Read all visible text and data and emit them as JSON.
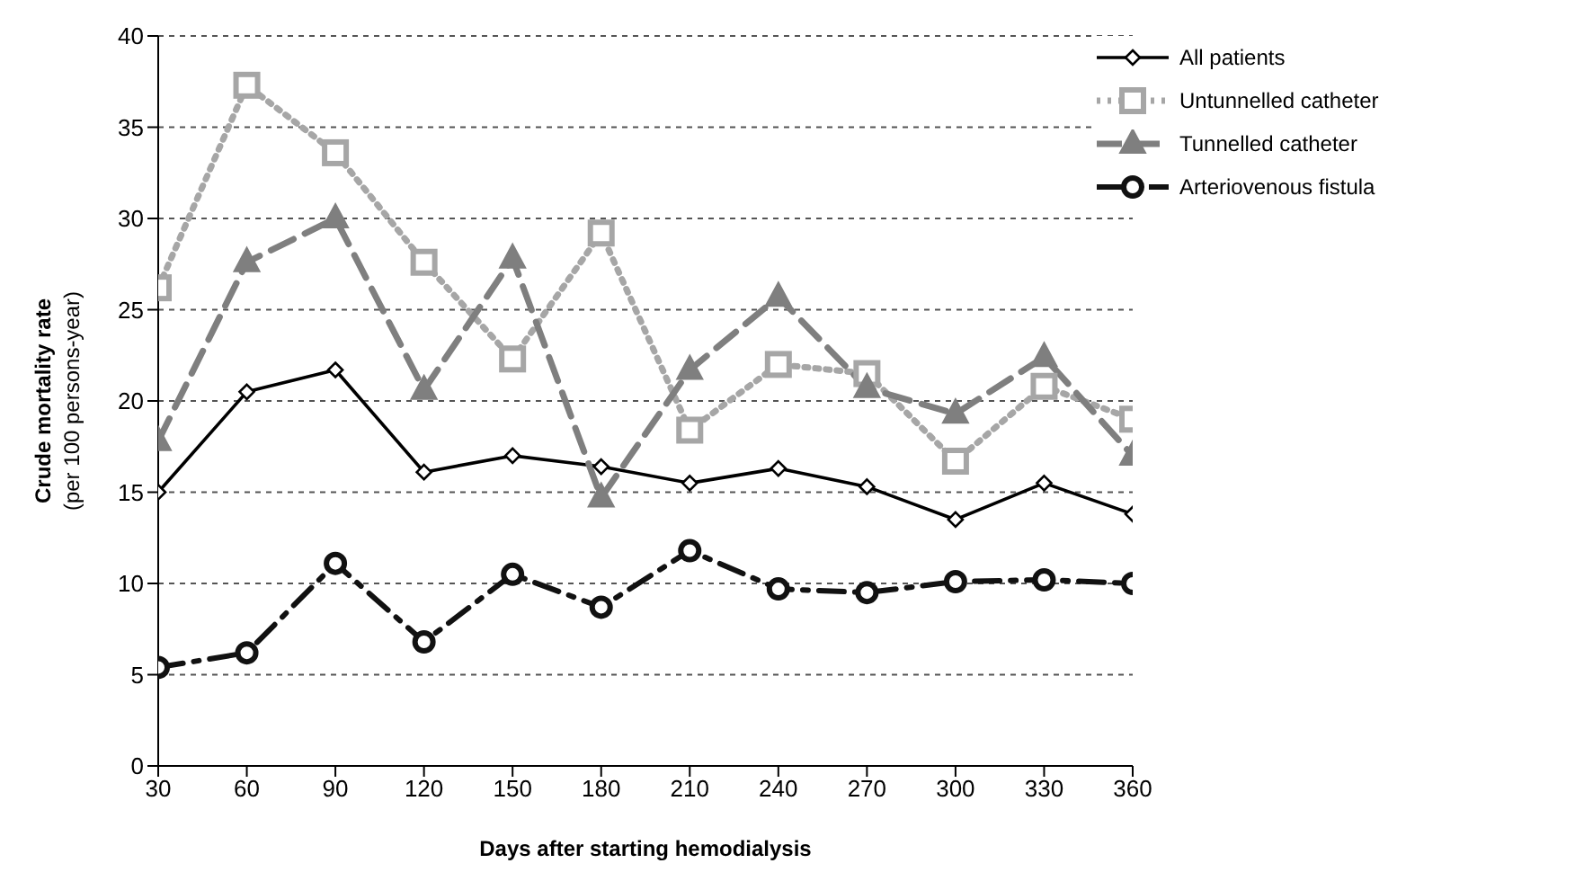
{
  "chart_data": {
    "type": "line",
    "xlabel": "Days after starting hemodialysis",
    "ylabel": "Crude mortality rate\n(per 100 persons-year)",
    "x": [
      30,
      60,
      90,
      120,
      150,
      180,
      210,
      240,
      270,
      300,
      330,
      360
    ],
    "xlim": [
      30,
      360
    ],
    "xticks": [
      30,
      60,
      90,
      120,
      150,
      180,
      210,
      240,
      270,
      300,
      330,
      360
    ],
    "ylim": [
      0,
      40
    ],
    "yticks": [
      0,
      5,
      10,
      15,
      20,
      25,
      30,
      35,
      40
    ],
    "grid": "y",
    "legend": "top right",
    "series": [
      {
        "name": "All patients",
        "color": "#000000",
        "marker": "diamond",
        "line_style": "solid",
        "values": [
          15,
          20.5,
          21.7,
          16.1,
          17,
          16.4,
          15.5,
          16.3,
          15.3,
          13.5,
          15.5,
          13.8
        ]
      },
      {
        "name": "Untunnelled catheter",
        "color": "#a6a6a6",
        "marker": "square",
        "line_style": "dotted",
        "values": [
          26.2,
          37.3,
          33.6,
          27.6,
          22.3,
          29.2,
          18.4,
          22,
          21.5,
          16.7,
          20.8,
          19
        ]
      },
      {
        "name": "Tunnelled catheter",
        "color": "#7f7f7f",
        "marker": "triangle",
        "line_style": "dashed",
        "values": [
          17.8,
          27.6,
          30,
          20.6,
          27.8,
          14.7,
          21.7,
          25.7,
          20.7,
          19.3,
          22.4,
          17
        ]
      },
      {
        "name": "Arteriovenous fistula",
        "color": "#111111",
        "marker": "circle",
        "line_style": "dashdot",
        "values": [
          5.4,
          6.2,
          11.1,
          6.8,
          10.5,
          8.7,
          11.8,
          9.7,
          9.5,
          10.1,
          10.2,
          10
        ]
      }
    ]
  }
}
